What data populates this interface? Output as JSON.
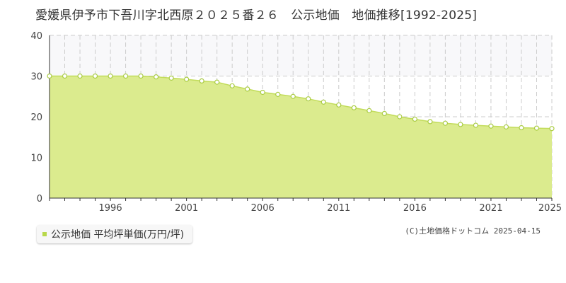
{
  "title": "愛媛県伊予市下吾川字北西原２０２５番２６　公示地価　地価推移[1992-2025]",
  "legend": {
    "label": "公示地価 平均坪単価(万円/坪)"
  },
  "copyright": "(C)土地価格ドットコム 2025-04-15",
  "colors": {
    "fill": "#dbeb8e",
    "line": "#c2dc5a",
    "marker_stroke": "#aacc44",
    "marker_fill": "#ffffff",
    "upper_band": "#f8f8fa",
    "grid": "#cccccc",
    "axis": "#333333"
  },
  "chart_data": {
    "type": "area",
    "x_range": [
      1992,
      2025
    ],
    "ylim": [
      0,
      40
    ],
    "y_ticks": [
      0,
      10,
      20,
      30,
      40
    ],
    "x_tick_labels": [
      "1996",
      "2001",
      "2006",
      "2011",
      "2016",
      "2021",
      "2025"
    ],
    "grid": true,
    "legend_position": "bottom-left",
    "series": [
      {
        "name": "公示地価 平均坪単価(万円/坪)",
        "x": [
          1992,
          1993,
          1994,
          1995,
          1996,
          1997,
          1998,
          1999,
          2000,
          2001,
          2002,
          2003,
          2004,
          2005,
          2006,
          2007,
          2008,
          2009,
          2010,
          2011,
          2012,
          2013,
          2014,
          2015,
          2016,
          2017,
          2018,
          2019,
          2020,
          2021,
          2022,
          2023,
          2024,
          2025
        ],
        "values": [
          30.0,
          30.0,
          30.0,
          30.0,
          30.0,
          30.0,
          30.0,
          29.8,
          29.5,
          29.2,
          28.8,
          28.5,
          27.6,
          26.8,
          26.0,
          25.5,
          25.0,
          24.4,
          23.6,
          22.9,
          22.2,
          21.5,
          20.8,
          20.0,
          19.4,
          18.8,
          18.4,
          18.1,
          17.9,
          17.7,
          17.5,
          17.3,
          17.2,
          17.1
        ]
      }
    ]
  }
}
